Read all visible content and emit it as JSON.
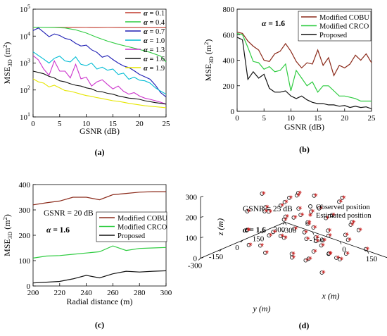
{
  "chart_data": [
    {
      "panel_label": "(a)",
      "type": "line",
      "xlabel": "GSNR (dB)",
      "ylabel": "MSE",
      "ylabel_sub": "3D",
      "ylabel_unit": "(m",
      "ylabel_unit_sup": "2",
      "ylabel_unit_close": ")",
      "xlim": [
        0,
        25
      ],
      "ylim": [
        10,
        100000
      ],
      "yscale": "log",
      "x_ticks": [
        "0",
        "5",
        "10",
        "15",
        "20",
        "25"
      ],
      "y_ticks": [
        {
          "base": "10",
          "exp": "1"
        },
        {
          "base": "10",
          "exp": "2"
        },
        {
          "base": "10",
          "exp": "3"
        },
        {
          "base": "10",
          "exp": "4"
        },
        {
          "base": "10",
          "exp": "5"
        }
      ],
      "legend_position": "top-right",
      "legend_prefix": "α = ",
      "series": [
        {
          "name": "0.1",
          "color": "#c0392b",
          "x": [
            0,
            2,
            4,
            6,
            8,
            10,
            12,
            14,
            16,
            18,
            20,
            22,
            24,
            25
          ],
          "y": [
            21000,
            20900,
            21000,
            20800,
            21000,
            20900,
            20700,
            20900,
            20800,
            20600,
            20700,
            20500,
            20500,
            20600
          ]
        },
        {
          "name": "0.4",
          "color": "#2ecc40",
          "x": [
            0,
            2,
            4,
            6,
            8,
            10,
            12,
            14,
            16,
            18,
            20,
            22,
            24,
            25
          ],
          "y": [
            21000,
            21000,
            20800,
            20000,
            17000,
            13000,
            9000,
            6500,
            5000,
            4000,
            3200,
            2500,
            1800,
            1100
          ]
        },
        {
          "name": "0.7",
          "color": "#1f1fb4",
          "x": [
            0,
            1,
            2,
            3,
            4,
            5,
            6,
            7,
            8,
            9,
            10,
            11,
            12,
            13,
            14,
            15,
            16,
            17,
            18,
            19,
            20,
            21,
            22,
            23,
            24,
            25
          ],
          "y": [
            16000,
            20000,
            14000,
            9500,
            12000,
            10500,
            8200,
            7400,
            5400,
            4300,
            4600,
            3100,
            2500,
            1650,
            1900,
            1350,
            1000,
            780,
            680,
            520,
            380,
            310,
            250,
            150,
            80,
            55
          ]
        },
        {
          "name": "1.0",
          "color": "#00bcd4",
          "x": [
            0,
            1,
            2,
            3,
            4,
            5,
            6,
            7,
            8,
            9,
            10,
            11,
            12,
            13,
            14,
            15,
            16,
            17,
            18,
            19,
            20,
            21,
            22,
            23,
            24,
            25
          ],
          "y": [
            2600,
            1900,
            1400,
            1000,
            1500,
            1800,
            1200,
            1100,
            1700,
            900,
            800,
            1000,
            600,
            700,
            540,
            600,
            380,
            420,
            250,
            300,
            230,
            220,
            180,
            120,
            90,
            70
          ]
        },
        {
          "name": "1.3",
          "color": "#cc33cc",
          "x": [
            0,
            1,
            2,
            3,
            4,
            5,
            6,
            7,
            8,
            9,
            10,
            11,
            12,
            13,
            14,
            15,
            16,
            17,
            18,
            19,
            20,
            21,
            22,
            23,
            24,
            25
          ],
          "y": [
            1900,
            1300,
            600,
            350,
            1200,
            500,
            500,
            280,
            900,
            260,
            300,
            140,
            200,
            240,
            160,
            110,
            140,
            90,
            70,
            80,
            60,
            50,
            45,
            40,
            35,
            30
          ]
        },
        {
          "name": "1.6",
          "color": "#111111",
          "x": [
            0,
            1,
            2,
            3,
            4,
            5,
            6,
            7,
            8,
            9,
            10,
            11,
            12,
            13,
            14,
            15,
            16,
            17,
            18,
            19,
            20,
            21,
            22,
            23,
            24,
            25
          ],
          "y": [
            500,
            450,
            400,
            320,
            280,
            220,
            200,
            170,
            150,
            140,
            120,
            110,
            90,
            85,
            75,
            70,
            60,
            55,
            50,
            48,
            45,
            40,
            37,
            34,
            32,
            30
          ]
        },
        {
          "name": "1.9",
          "color": "#e6e600",
          "x": [
            0,
            1,
            2,
            3,
            4,
            5,
            6,
            7,
            8,
            9,
            10,
            11,
            12,
            13,
            14,
            15,
            16,
            17,
            18,
            19,
            20,
            21,
            22,
            23,
            24,
            25
          ],
          "y": [
            260,
            200,
            180,
            130,
            150,
            120,
            95,
            90,
            80,
            70,
            62,
            58,
            52,
            48,
            44,
            40,
            38,
            35,
            32,
            30,
            28,
            26,
            25,
            24,
            23,
            22
          ]
        }
      ]
    },
    {
      "panel_label": "(b)",
      "type": "line",
      "xlabel": "GSNR (dB)",
      "ylabel": "MSE",
      "ylabel_sub": "3D",
      "ylabel_unit": "(m",
      "ylabel_unit_sup": "2",
      "ylabel_unit_close": ")",
      "xlim": [
        0,
        25
      ],
      "ylim": [
        0,
        800
      ],
      "x_ticks": [
        "0",
        "5",
        "10",
        "15",
        "20",
        "25"
      ],
      "y_ticks": [
        "0",
        "200",
        "400",
        "600",
        "800"
      ],
      "annotation_prefix": "α = ",
      "annotation_value": "1.6",
      "legend_position": "top-right",
      "series": [
        {
          "name": "Modified COBU",
          "color": "#8b2a1a",
          "x": [
            0,
            1,
            2,
            3,
            4,
            5,
            6,
            7,
            8,
            9,
            10,
            11,
            12,
            13,
            14,
            15,
            16,
            17,
            18,
            19,
            20,
            21,
            22,
            23,
            24,
            25
          ],
          "y": [
            620,
            610,
            550,
            510,
            480,
            400,
            390,
            450,
            470,
            530,
            470,
            390,
            340,
            380,
            370,
            480,
            360,
            420,
            280,
            360,
            340,
            370,
            440,
            400,
            450,
            380
          ]
        },
        {
          "name": "Modified CRCO",
          "color": "#2ecc40",
          "x": [
            0,
            1,
            2,
            3,
            4,
            5,
            6,
            7,
            8,
            9,
            10,
            11,
            12,
            13,
            14,
            15,
            16,
            17,
            18,
            19,
            20,
            21,
            22,
            23,
            24,
            25
          ],
          "y": [
            610,
            600,
            500,
            390,
            380,
            330,
            350,
            310,
            320,
            370,
            160,
            320,
            260,
            200,
            230,
            150,
            200,
            200,
            160,
            120,
            120,
            110,
            100,
            80,
            80,
            80
          ]
        },
        {
          "name": "Proposed",
          "color": "#111111",
          "x": [
            0,
            1,
            2,
            3,
            4,
            5,
            6,
            7,
            8,
            9,
            10,
            11,
            12,
            13,
            14,
            15,
            16,
            17,
            18,
            19,
            20,
            21,
            22,
            23,
            24,
            25
          ],
          "y": [
            580,
            560,
            250,
            310,
            260,
            290,
            180,
            150,
            150,
            160,
            120,
            100,
            120,
            90,
            70,
            60,
            60,
            50,
            50,
            40,
            45,
            30,
            40,
            30,
            35,
            20
          ]
        }
      ]
    },
    {
      "panel_label": "(c)",
      "type": "line",
      "xlabel": "Radial distance (m)",
      "ylabel": "MSE",
      "ylabel_sub": "3D",
      "ylabel_unit": "(m",
      "ylabel_unit_sup": "2",
      "ylabel_unit_close": ")",
      "xlim": [
        200,
        300
      ],
      "ylim": [
        0,
        400
      ],
      "x_ticks": [
        "200",
        "220",
        "240",
        "260",
        "280",
        "300"
      ],
      "y_ticks": [
        "0",
        "100",
        "200",
        "300",
        "400"
      ],
      "annotation_lines": [
        "GSNR = 20 dB"
      ],
      "annotation_prefix": "α = ",
      "annotation_value": "1.6",
      "legend_position": "middle-right",
      "series": [
        {
          "name": "Modified COBU",
          "color": "#8b2a1a",
          "x": [
            200,
            210,
            220,
            230,
            240,
            250,
            260,
            270,
            280,
            290,
            300
          ],
          "y": [
            320,
            328,
            335,
            350,
            350,
            340,
            360,
            365,
            370,
            372,
            372
          ]
        },
        {
          "name": "Modified CRCO",
          "color": "#2ecc40",
          "x": [
            200,
            210,
            220,
            230,
            240,
            250,
            260,
            270,
            280,
            290,
            300
          ],
          "y": [
            110,
            118,
            120,
            125,
            130,
            135,
            158,
            140,
            148,
            150,
            152
          ]
        },
        {
          "name": "Proposed",
          "color": "#111111",
          "x": [
            200,
            210,
            220,
            230,
            240,
            250,
            260,
            270,
            280,
            290,
            300
          ],
          "y": [
            12,
            15,
            18,
            28,
            42,
            32,
            48,
            58,
            55,
            58,
            60
          ]
        }
      ]
    },
    {
      "panel_label": "(d)",
      "type": "scatter",
      "projection": "3d",
      "xlabel": "x (m)",
      "ylabel": "y (m)",
      "zlabel": "z (m)",
      "z_ticks": [
        "0",
        "100",
        "200",
        "300"
      ],
      "x_ticks": [
        "-300",
        "-150",
        "0",
        "150",
        "300"
      ],
      "y_ticks": [
        "-300",
        "-150",
        "0",
        "150",
        "300"
      ],
      "annotation_lines": [
        "GSNR = 25 dB"
      ],
      "annotation_prefix": "α = ",
      "annotation_value": "1.6",
      "legend_position": "top-right",
      "legend": [
        {
          "name": "Observed position",
          "color": "#111111",
          "marker": "circle-open"
        },
        {
          "name": "Estimated position",
          "color": "#cc2222",
          "marker": "star"
        }
      ],
      "points": [
        {
          "x": -250,
          "y": -120,
          "z": 120
        },
        {
          "x": -200,
          "y": -200,
          "z": 180
        },
        {
          "x": -180,
          "y": -60,
          "z": 60
        },
        {
          "x": -150,
          "y": 40,
          "z": 200
        },
        {
          "x": -120,
          "y": -160,
          "z": 240
        },
        {
          "x": -100,
          "y": 100,
          "z": 30
        },
        {
          "x": -90,
          "y": -20,
          "z": 160
        },
        {
          "x": -60,
          "y": 150,
          "z": 280
        },
        {
          "x": -40,
          "y": -100,
          "z": 90
        },
        {
          "x": -20,
          "y": 60,
          "z": 220
        },
        {
          "x": 0,
          "y": -180,
          "z": 40
        },
        {
          "x": 20,
          "y": 20,
          "z": 260
        },
        {
          "x": 40,
          "y": -60,
          "z": 150
        },
        {
          "x": 60,
          "y": 120,
          "z": 80
        },
        {
          "x": 80,
          "y": -140,
          "z": 200
        },
        {
          "x": 100,
          "y": 0,
          "z": 120
        },
        {
          "x": 120,
          "y": 180,
          "z": 240
        },
        {
          "x": 140,
          "y": -40,
          "z": 60
        },
        {
          "x": 160,
          "y": 80,
          "z": 180
        },
        {
          "x": 180,
          "y": -200,
          "z": 140
        },
        {
          "x": 200,
          "y": 40,
          "z": 100
        },
        {
          "x": 220,
          "y": -100,
          "z": 220
        },
        {
          "x": 240,
          "y": 140,
          "z": 50
        },
        {
          "x": 260,
          "y": -20,
          "z": 170
        },
        {
          "x": -230,
          "y": 60,
          "z": 90
        },
        {
          "x": -170,
          "y": 140,
          "z": 130
        },
        {
          "x": -130,
          "y": -240,
          "z": 70
        },
        {
          "x": -70,
          "y": 30,
          "z": 250
        },
        {
          "x": -30,
          "y": -60,
          "z": 190
        },
        {
          "x": 10,
          "y": 110,
          "z": 140
        },
        {
          "x": 50,
          "y": -230,
          "z": 230
        },
        {
          "x": 90,
          "y": 60,
          "z": 40
        },
        {
          "x": 130,
          "y": -170,
          "z": 110
        },
        {
          "x": 170,
          "y": 20,
          "z": 260
        },
        {
          "x": 210,
          "y": 160,
          "z": 150
        },
        {
          "x": 250,
          "y": -160,
          "z": 80
        },
        {
          "x": -210,
          "y": -20,
          "z": 250
        },
        {
          "x": -110,
          "y": 60,
          "z": 100
        },
        {
          "x": -10,
          "y": -130,
          "z": 270
        },
        {
          "x": 70,
          "y": 20,
          "z": 200
        },
        {
          "x": 150,
          "y": -80,
          "z": 30
        },
        {
          "x": 230,
          "y": 80,
          "z": 210
        },
        {
          "x": -190,
          "y": 100,
          "z": 40
        },
        {
          "x": -80,
          "y": -200,
          "z": 150
        },
        {
          "x": 30,
          "y": 160,
          "z": 170
        },
        {
          "x": 110,
          "y": -10,
          "z": 280
        },
        {
          "x": 190,
          "y": -130,
          "z": 190
        },
        {
          "x": -140,
          "y": -90,
          "z": 210
        },
        {
          "x": -50,
          "y": 200,
          "z": 110
        },
        {
          "x": 60,
          "y": -90,
          "z": 60
        },
        {
          "x": 160,
          "y": 130,
          "z": 90
        },
        {
          "x": -260,
          "y": 20,
          "z": 160
        },
        {
          "x": 280,
          "y": 20,
          "z": 120
        },
        {
          "x": 0,
          "y": 40,
          "z": 20
        },
        {
          "x": -20,
          "y": -20,
          "z": 300
        },
        {
          "x": 40,
          "y": 80,
          "z": 240
        },
        {
          "x": 120,
          "y": -60,
          "z": 160
        },
        {
          "x": -60,
          "y": -140,
          "z": 40
        },
        {
          "x": 90,
          "y": -200,
          "z": 270
        },
        {
          "x": 200,
          "y": -40,
          "z": 50
        }
      ]
    }
  ]
}
